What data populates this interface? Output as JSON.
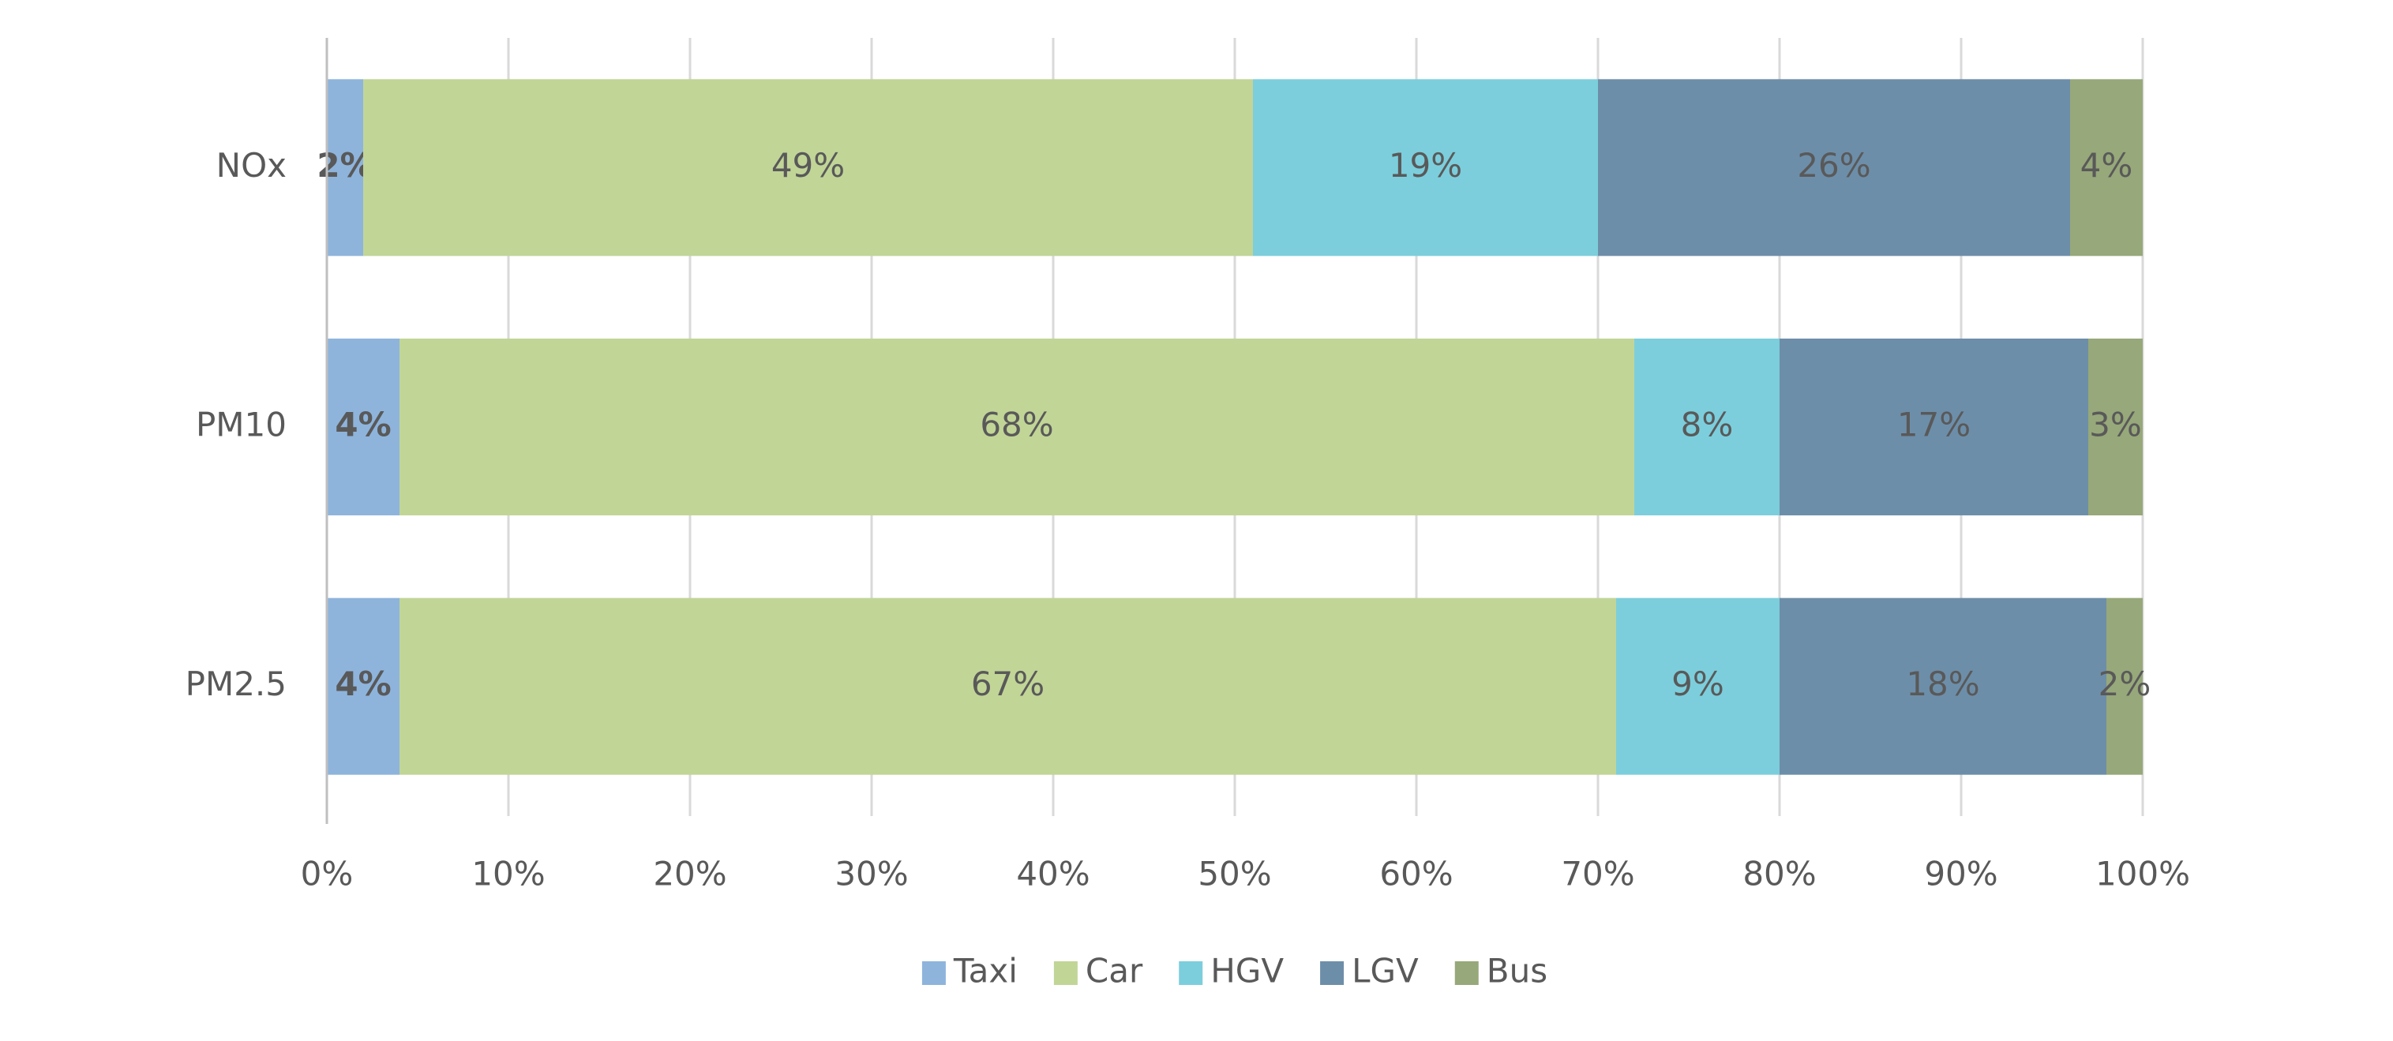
{
  "chart_data": {
    "type": "stacked-bar-horizontal",
    "categories": [
      "NOx",
      "PM10",
      "PM2.5"
    ],
    "series": [
      {
        "name": "Taxi",
        "color": "#8eb4dc",
        "values": [
          2,
          4,
          4
        ],
        "value_labels": [
          "2%",
          "4%",
          "4%"
        ]
      },
      {
        "name": "Car",
        "color": "#c1d597",
        "values": [
          49,
          68,
          67
        ],
        "value_labels": [
          "49%",
          "68%",
          "67%"
        ]
      },
      {
        "name": "HGV",
        "color": "#7ccedc",
        "values": [
          19,
          8,
          9
        ],
        "value_labels": [
          "19%",
          "8%",
          "9%"
        ]
      },
      {
        "name": "LGV",
        "color": "#6d8ea9",
        "values": [
          26,
          17,
          18
        ],
        "value_labels": [
          "26%",
          "17%",
          "18%"
        ]
      },
      {
        "name": "Bus",
        "color": "#97a87a",
        "values": [
          4,
          3,
          2
        ],
        "value_labels": [
          "4%",
          "3%",
          "2%"
        ]
      }
    ],
    "xlim": [
      0,
      100
    ],
    "xticks": [
      {
        "value": 0,
        "label": "0%"
      },
      {
        "value": 10,
        "label": "10%"
      },
      {
        "value": 20,
        "label": "20%"
      },
      {
        "value": 30,
        "label": "30%"
      },
      {
        "value": 40,
        "label": "40%"
      },
      {
        "value": 50,
        "label": "50%"
      },
      {
        "value": 60,
        "label": "60%"
      },
      {
        "value": 70,
        "label": "70%"
      },
      {
        "value": 80,
        "label": "80%"
      },
      {
        "value": 90,
        "label": "90%"
      },
      {
        "value": 100,
        "label": "100%"
      }
    ],
    "grid": true,
    "legend": "bottom"
  }
}
